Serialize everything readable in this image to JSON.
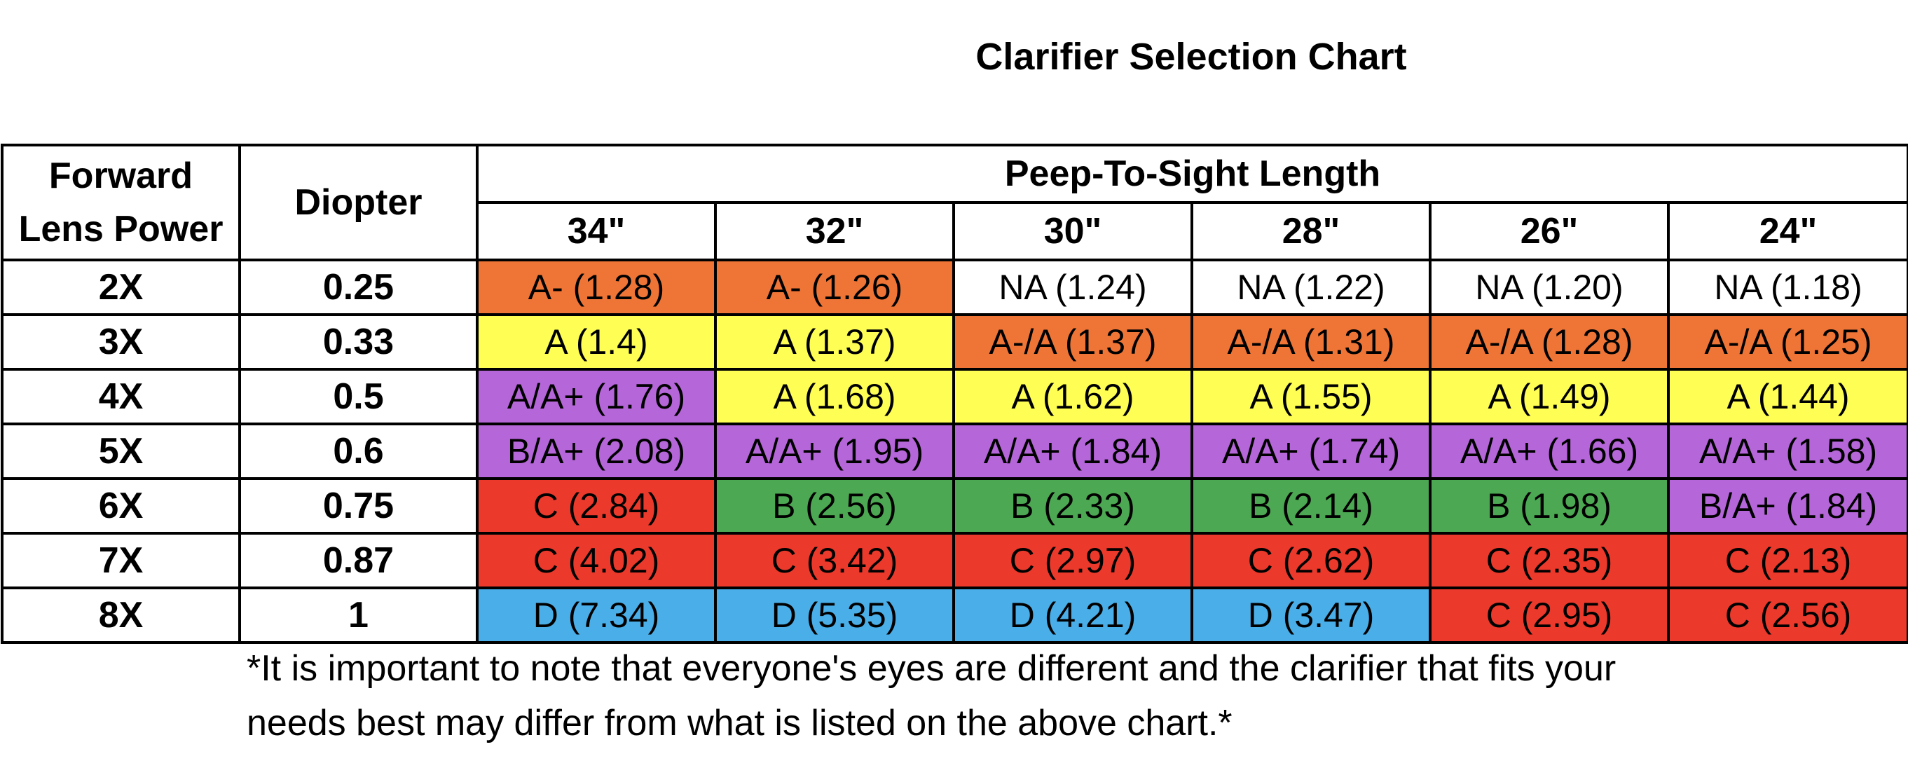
{
  "title": "Clarifier Selection Chart",
  "table": {
    "header": {
      "lens_power_line1": "Forward",
      "lens_power_line2": "Lens Power",
      "diopter": "Diopter",
      "peep_group": "Peep-To-Sight Length",
      "lengths": [
        "34\"",
        "32\"",
        "30\"",
        "28\"",
        "26\"",
        "24\""
      ]
    },
    "rows": [
      {
        "power": "2X",
        "diopter": "0.25",
        "cells": [
          {
            "text": "A- (1.28)",
            "color": "#ef7537"
          },
          {
            "text": "A- (1.26)",
            "color": "#ef7537"
          },
          {
            "text": "NA (1.24)",
            "color": "#ffffff"
          },
          {
            "text": "NA (1.22)",
            "color": "#ffffff"
          },
          {
            "text": "NA (1.20)",
            "color": "#ffffff"
          },
          {
            "text": "NA (1.18)",
            "color": "#ffffff"
          }
        ]
      },
      {
        "power": "3X",
        "diopter": "0.33",
        "cells": [
          {
            "text": "A (1.4)",
            "color": "#fefe55"
          },
          {
            "text": "A (1.37)",
            "color": "#fefe55"
          },
          {
            "text": "A-/A (1.37)",
            "color": "#ef7537"
          },
          {
            "text": "A-/A (1.31)",
            "color": "#ef7537"
          },
          {
            "text": "A-/A (1.28)",
            "color": "#ef7537"
          },
          {
            "text": "A-/A (1.25)",
            "color": "#ef7537"
          }
        ]
      },
      {
        "power": "4X",
        "diopter": "0.5",
        "cells": [
          {
            "text": "A/A+ (1.76)",
            "color": "#b566d9"
          },
          {
            "text": "A (1.68)",
            "color": "#fefe55"
          },
          {
            "text": "A (1.62)",
            "color": "#fefe55"
          },
          {
            "text": "A (1.55)",
            "color": "#fefe55"
          },
          {
            "text": "A (1.49)",
            "color": "#fefe55"
          },
          {
            "text": "A (1.44)",
            "color": "#fefe55"
          }
        ]
      },
      {
        "power": "5X",
        "diopter": "0.6",
        "cells": [
          {
            "text": "B/A+ (2.08)",
            "color": "#b566d9"
          },
          {
            "text": "A/A+ (1.95)",
            "color": "#b566d9"
          },
          {
            "text": "A/A+ (1.84)",
            "color": "#b566d9"
          },
          {
            "text": "A/A+ (1.74)",
            "color": "#b566d9"
          },
          {
            "text": "A/A+ (1.66)",
            "color": "#b566d9"
          },
          {
            "text": "A/A+ (1.58)",
            "color": "#b566d9"
          }
        ]
      },
      {
        "power": "6X",
        "diopter": "0.75",
        "cells": [
          {
            "text": "C (2.84)",
            "color": "#eb3a2c"
          },
          {
            "text": "B (2.56)",
            "color": "#4ca852"
          },
          {
            "text": "B (2.33)",
            "color": "#4ca852"
          },
          {
            "text": "B (2.14)",
            "color": "#4ca852"
          },
          {
            "text": "B (1.98)",
            "color": "#4ca852"
          },
          {
            "text": "B/A+ (1.84)",
            "color": "#b566d9"
          }
        ]
      },
      {
        "power": "7X",
        "diopter": "0.87",
        "cells": [
          {
            "text": "C (4.02)",
            "color": "#eb3a2c"
          },
          {
            "text": "C (3.42)",
            "color": "#eb3a2c"
          },
          {
            "text": "C (2.97)",
            "color": "#eb3a2c"
          },
          {
            "text": "C (2.62)",
            "color": "#eb3a2c"
          },
          {
            "text": "C (2.35)",
            "color": "#eb3a2c"
          },
          {
            "text": "C (2.13)",
            "color": "#eb3a2c"
          }
        ]
      },
      {
        "power": "8X",
        "diopter": "1",
        "cells": [
          {
            "text": "D (7.34)",
            "color": "#4aaee8"
          },
          {
            "text": "D (5.35)",
            "color": "#4aaee8"
          },
          {
            "text": "D (4.21)",
            "color": "#4aaee8"
          },
          {
            "text": "D (3.47)",
            "color": "#4aaee8"
          },
          {
            "text": "C (2.95)",
            "color": "#eb3a2c"
          },
          {
            "text": "C (2.56)",
            "color": "#eb3a2c"
          }
        ]
      }
    ]
  },
  "note": {
    "line1": "*It is important to note that everyone's eyes are different and the clarifier that fits your",
    "line2": "needs best may differ from what is listed on the above chart.*"
  }
}
